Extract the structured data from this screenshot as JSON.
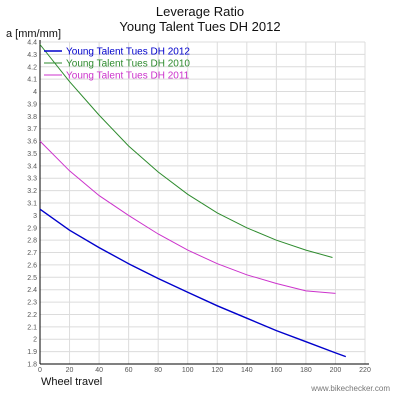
{
  "chart_data": {
    "type": "line",
    "title_line1": "Leverage Ratio",
    "title_line2": "Young Talent Tues DH 2012",
    "ylabel": "a [mm/mm]",
    "xlabel": "Wheel travel",
    "xlim": [
      0,
      220
    ],
    "ylim": [
      1.8,
      4.4
    ],
    "x_ticks": [
      0,
      20,
      40,
      60,
      80,
      100,
      120,
      140,
      160,
      180,
      200,
      220
    ],
    "y_ticks": [
      1.8,
      1.9,
      2.0,
      2.1,
      2.2,
      2.3,
      2.4,
      2.5,
      2.6,
      2.7,
      2.8,
      2.9,
      3.0,
      3.1,
      3.2,
      3.3,
      3.4,
      3.5,
      3.6,
      3.7,
      3.8,
      3.9,
      4.0,
      4.1,
      4.2,
      4.3,
      4.4
    ],
    "grid": true,
    "legend_position": "top-left",
    "series": [
      {
        "name": "Young Talent Tues DH 2012",
        "color": "#0000cc",
        "x": [
          0,
          20,
          40,
          60,
          80,
          100,
          120,
          140,
          160,
          180,
          200,
          207
        ],
        "y": [
          3.05,
          2.88,
          2.74,
          2.61,
          2.49,
          2.38,
          2.27,
          2.17,
          2.07,
          1.98,
          1.89,
          1.86
        ]
      },
      {
        "name": "Young Talent Tues DH 2010",
        "color": "#2e8b2e",
        "x": [
          0,
          20,
          40,
          60,
          80,
          100,
          120,
          140,
          160,
          180,
          198
        ],
        "y": [
          4.38,
          4.08,
          3.81,
          3.56,
          3.35,
          3.17,
          3.02,
          2.9,
          2.8,
          2.72,
          2.66
        ]
      },
      {
        "name": "Young Talent Tues DH 2011",
        "color": "#cc33cc",
        "x": [
          0,
          20,
          40,
          60,
          80,
          100,
          120,
          140,
          160,
          180,
          200
        ],
        "y": [
          3.6,
          3.36,
          3.16,
          3.0,
          2.85,
          2.72,
          2.61,
          2.52,
          2.45,
          2.39,
          2.37
        ]
      }
    ],
    "watermark": "www.bikechecker.com"
  }
}
